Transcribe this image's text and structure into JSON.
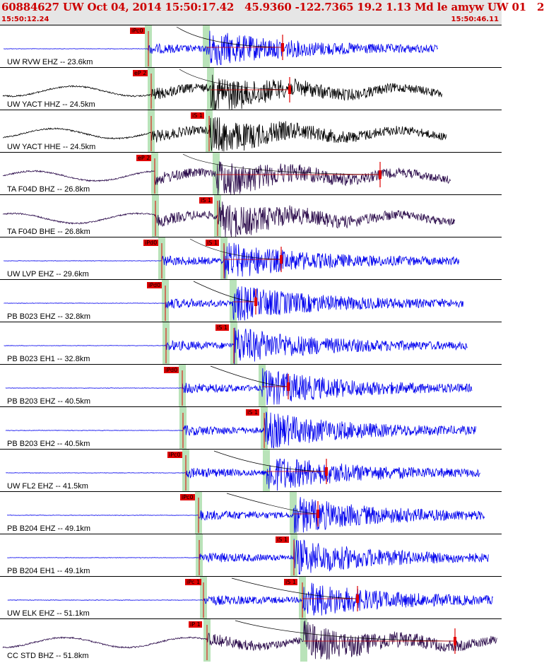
{
  "header": {
    "title": "60884627 UW Oct 04, 2014 15:50:17.42   45.9360 -122.7365 19.2 1.13 Md le amyw UW 01   2",
    "start_time": "15:50:12.24",
    "end_time": "15:50:46.11"
  },
  "colors": {
    "blue": "#0000ee",
    "black": "#000000",
    "purple": "#2a0a4a",
    "pick_red": "#e00000",
    "green_band": "#b9e3b9",
    "header_bg": "#e6e6e6"
  },
  "traces": [
    {
      "label": "UW RVW EHZ -- 23.6km",
      "color": "blue",
      "p": 210,
      "p_label": "iPc0",
      "s": 292,
      "s_label": "",
      "coda": 400
    },
    {
      "label": "UW YACT HHZ -- 24.5km",
      "color": "black",
      "p": 214,
      "p_label": "eP 2",
      "s": 298,
      "s_label": "",
      "coda": 410
    },
    {
      "label": "UW YACT HHE -- 24.5km",
      "color": "black",
      "p": 214,
      "p_label": "",
      "s": 296,
      "s_label": "iS 1",
      "coda": 0
    },
    {
      "label": "TA F04D BHZ -- 26.8km",
      "color": "purple",
      "p": 219,
      "p_label": "eP 2",
      "s": 306,
      "s_label": "",
      "coda": 538
    },
    {
      "label": "TA F04D BHE -- 26.8km",
      "color": "purple",
      "p": 220,
      "p_label": "",
      "s": 308,
      "s_label": "iS 1",
      "coda": 0
    },
    {
      "label": "UW LVP EHZ -- 29.6km",
      "color": "blue",
      "p": 229,
      "p_label": "iPd0",
      "s": 317,
      "s_label": "iS 1",
      "coda": 398
    },
    {
      "label": "PB B023 EHZ -- 32.8km",
      "color": "blue",
      "p": 234,
      "p_label": "iPd0",
      "s": 330,
      "s_label": "",
      "coda": 362
    },
    {
      "label": "PB B023 EH1 -- 32.8km",
      "color": "blue",
      "p": 235,
      "p_label": "",
      "s": 331,
      "s_label": "iS 1",
      "coda": 0
    },
    {
      "label": "PB B203 EHZ -- 40.5km",
      "color": "blue",
      "p": 258,
      "p_label": "iPd0",
      "s": 371,
      "s_label": "",
      "coda": 408
    },
    {
      "label": "PB B203 EH2 -- 40.5km",
      "color": "blue",
      "p": 259,
      "p_label": "",
      "s": 374,
      "s_label": "iS 1",
      "coda": 0
    },
    {
      "label": "UW FL2 EHZ -- 41.5km",
      "color": "blue",
      "p": 263,
      "p_label": "iPc0",
      "s": 377,
      "s_label": "",
      "coda": 462
    },
    {
      "label": "PB B204 EHZ -- 49.1km",
      "color": "blue",
      "p": 281,
      "p_label": "iPc0",
      "s": 415,
      "s_label": "",
      "coda": 450
    },
    {
      "label": "PB B204 EH1 -- 49.1km",
      "color": "blue",
      "p": 282,
      "p_label": "",
      "s": 416,
      "s_label": "iS 1",
      "coda": 0
    },
    {
      "label": "UW ELK EHZ -- 51.1km",
      "color": "blue",
      "p": 288,
      "p_label": "iPc 1",
      "s": 428,
      "s_label": "iS 1",
      "coda": 506
    },
    {
      "label": "CC STD BHZ -- 51.8km",
      "color": "purple",
      "p": 293,
      "p_label": "iP 1",
      "s": 430,
      "s_label": "",
      "coda": 644
    }
  ]
}
